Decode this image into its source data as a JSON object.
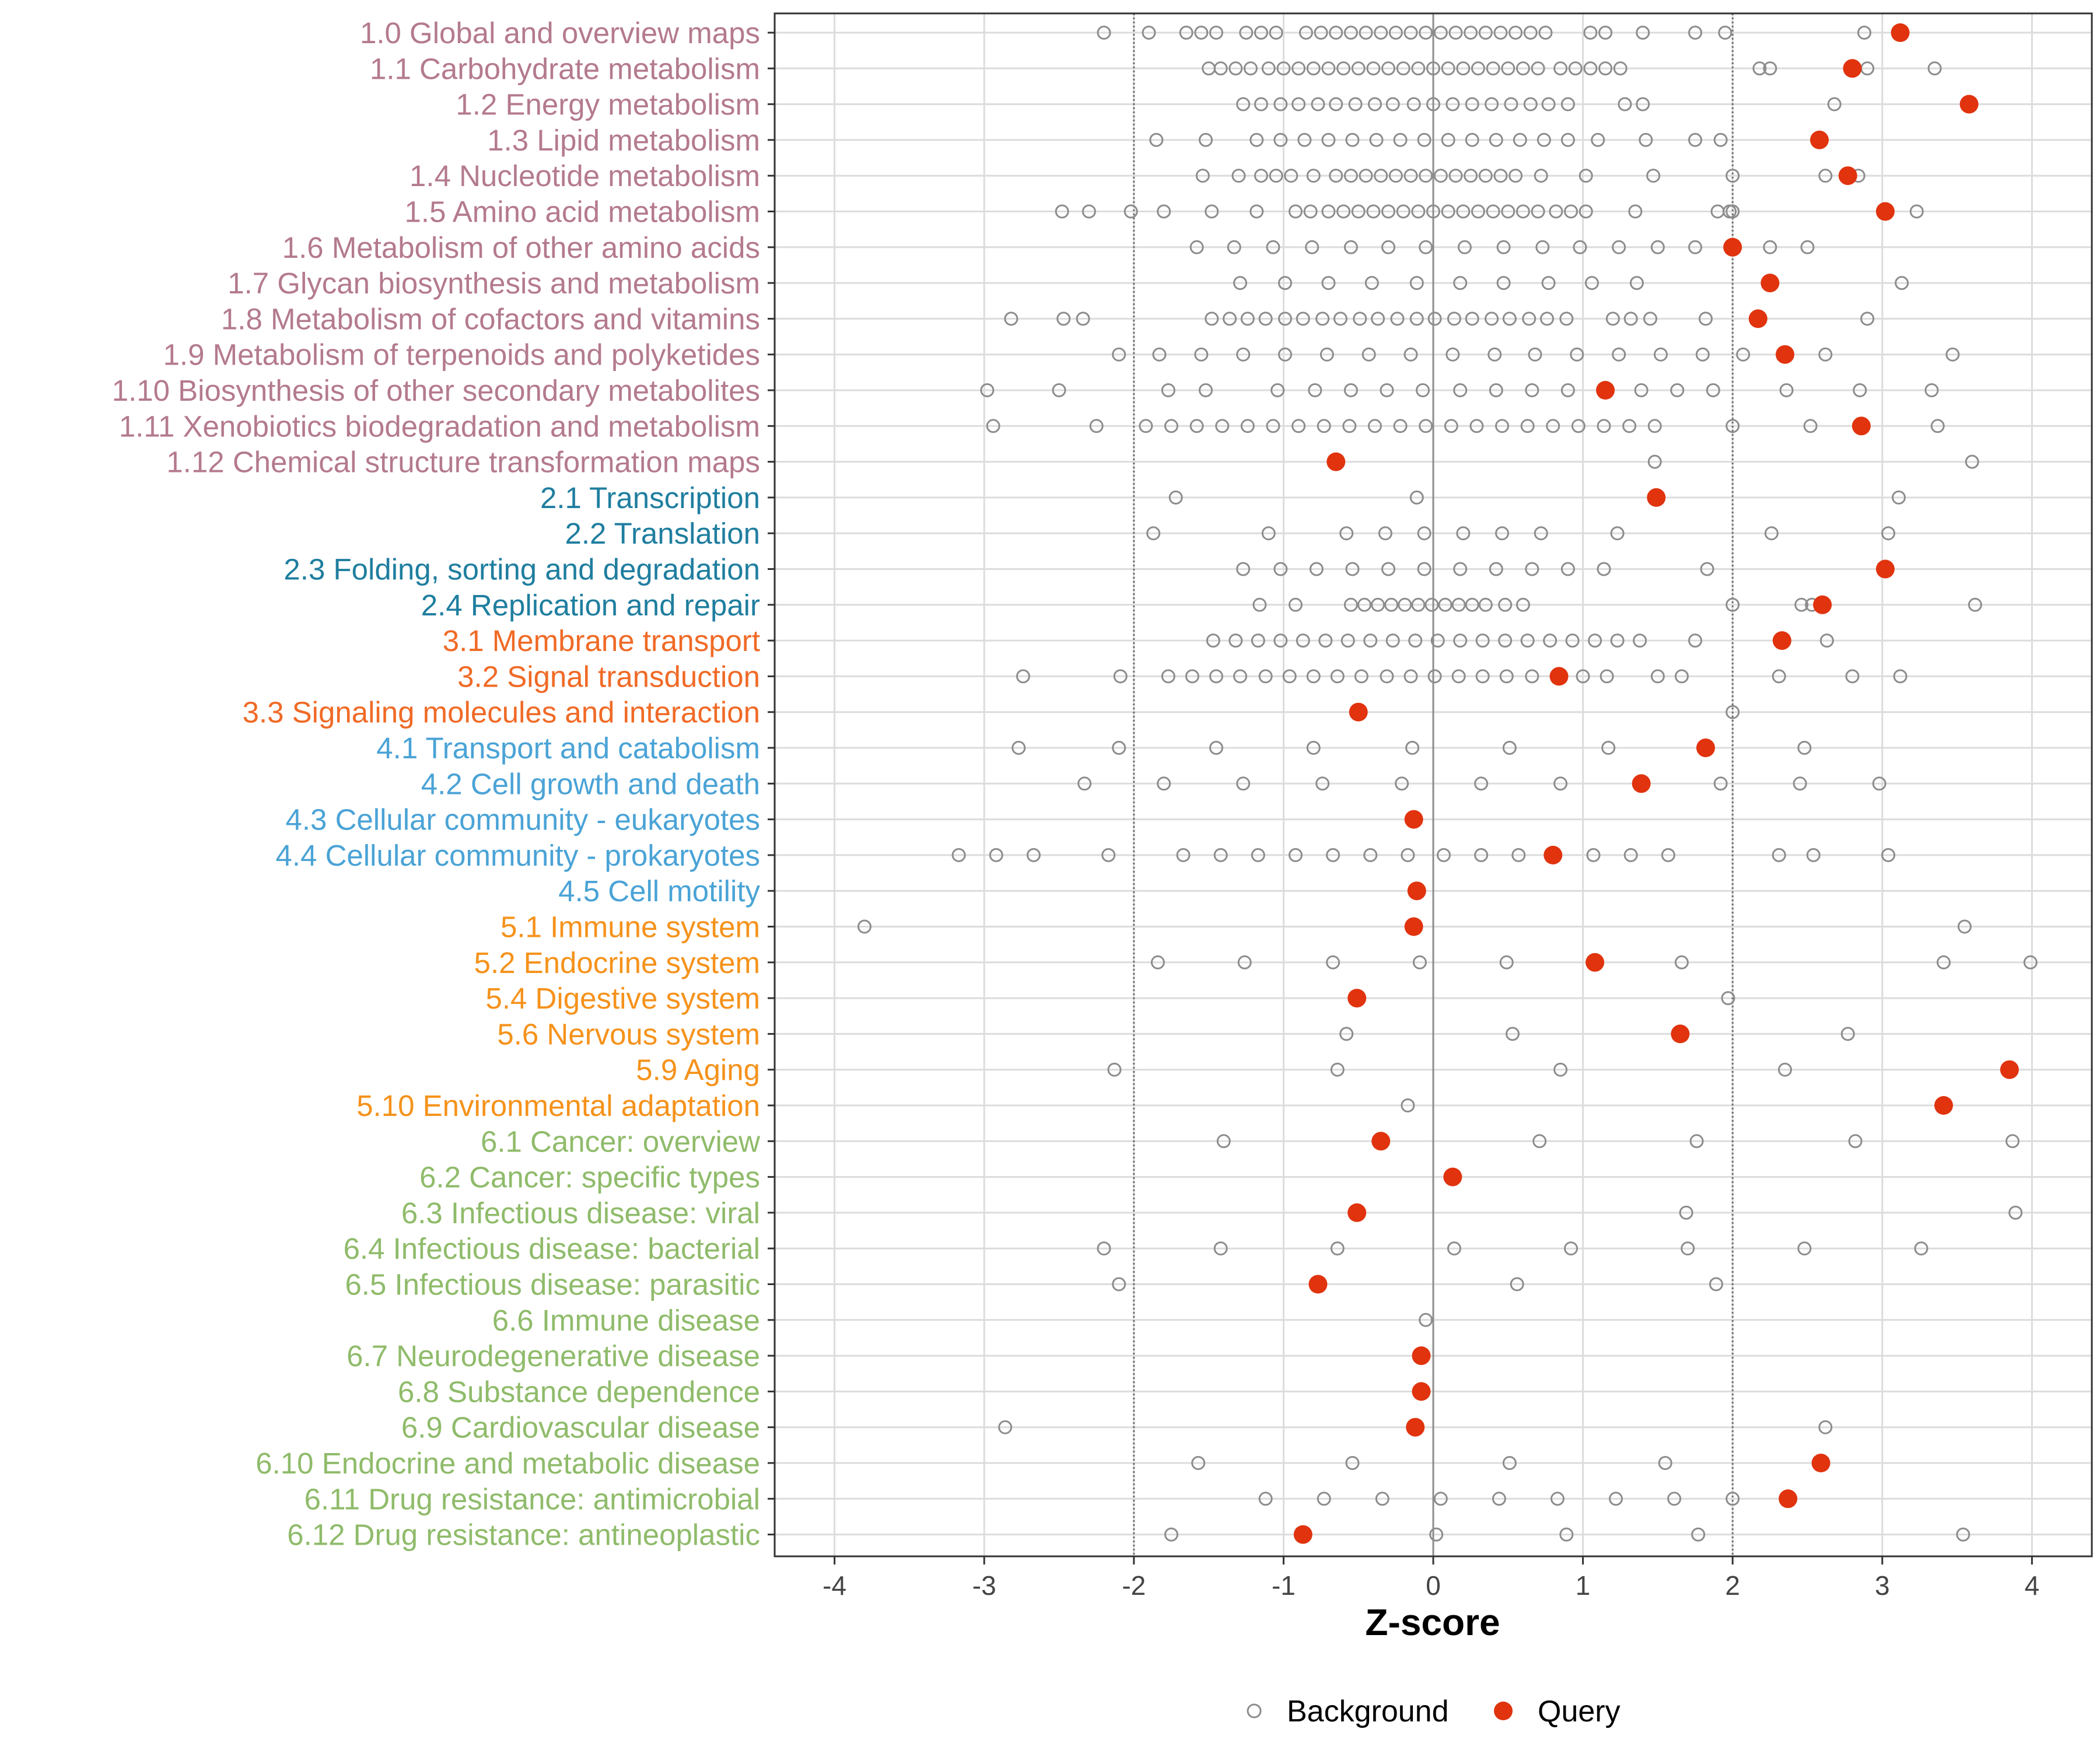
{
  "chart_data": {
    "type": "scatter",
    "xlabel": "Z-score",
    "ylabel": "",
    "xlim": [
      -4.4,
      4.4
    ],
    "xticks": [
      -4,
      -3,
      -2,
      -1,
      0,
      1,
      2,
      3,
      4
    ],
    "reference_lines": [
      -2,
      2
    ],
    "grid": true,
    "legend": {
      "position": "bottom",
      "entries": [
        {
          "name": "Background",
          "marker": "open-circle",
          "color": "#8c8c8c"
        },
        {
          "name": "Query",
          "marker": "filled-circle",
          "color": "#e0330e"
        }
      ]
    },
    "category_colors": {
      "1": "#b47a8d",
      "2": "#1f7e9f",
      "3": "#f06a26",
      "4": "#4aa3d6",
      "5": "#f5921b",
      "6": "#8fbb6a"
    },
    "categories": [
      {
        "label": "1.0 Global and overview maps",
        "group": "1",
        "query": 3.12,
        "background": [
          -2.2,
          -1.9,
          -1.65,
          -1.55,
          -1.45,
          -1.25,
          -1.15,
          -1.05,
          -0.85,
          -0.75,
          -0.65,
          -0.55,
          -0.45,
          -0.35,
          -0.25,
          -0.15,
          -0.05,
          0.05,
          0.15,
          0.25,
          0.35,
          0.45,
          0.55,
          0.65,
          0.75,
          1.05,
          1.15,
          1.4,
          1.75,
          1.95,
          2.88
        ]
      },
      {
        "label": "1.1 Carbohydrate metabolism",
        "group": "1",
        "query": 2.8,
        "background": [
          -1.5,
          -1.42,
          -1.32,
          -1.22,
          -1.1,
          -1.0,
          -0.9,
          -0.8,
          -0.7,
          -0.6,
          -0.5,
          -0.4,
          -0.3,
          -0.2,
          -0.1,
          0.0,
          0.1,
          0.2,
          0.3,
          0.4,
          0.5,
          0.6,
          0.7,
          0.85,
          0.95,
          1.05,
          1.15,
          1.25,
          2.18,
          2.25,
          2.9,
          3.35
        ]
      },
      {
        "label": "1.2 Energy metabolism",
        "group": "1",
        "query": 3.58,
        "background": [
          -1.27,
          -1.15,
          -1.02,
          -0.9,
          -0.77,
          -0.65,
          -0.52,
          -0.39,
          -0.27,
          -0.13,
          0.0,
          0.13,
          0.26,
          0.39,
          0.52,
          0.65,
          0.77,
          0.9,
          1.28,
          1.4,
          2.68
        ]
      },
      {
        "label": "1.3 Lipid metabolism",
        "group": "1",
        "query": 2.58,
        "background": [
          -1.85,
          -1.52,
          -1.18,
          -1.02,
          -0.86,
          -0.7,
          -0.54,
          -0.38,
          -0.22,
          -0.06,
          0.1,
          0.26,
          0.42,
          0.58,
          0.74,
          0.9,
          1.1,
          1.42,
          1.75,
          1.92
        ]
      },
      {
        "label": "1.4 Nucleotide metabolism",
        "group": "1",
        "query": 2.77,
        "background": [
          -1.54,
          -1.3,
          -1.15,
          -1.05,
          -0.95,
          -0.8,
          -0.65,
          -0.55,
          -0.45,
          -0.35,
          -0.25,
          -0.15,
          -0.05,
          0.05,
          0.15,
          0.25,
          0.35,
          0.45,
          0.55,
          0.72,
          1.02,
          1.47,
          2.0,
          2.62,
          2.84
        ]
      },
      {
        "label": "1.5 Amino acid metabolism",
        "group": "1",
        "query": 3.02,
        "background": [
          -2.48,
          -2.3,
          -2.02,
          -1.8,
          -1.48,
          -1.18,
          -0.92,
          -0.82,
          -0.7,
          -0.6,
          -0.5,
          -0.4,
          -0.3,
          -0.2,
          -0.1,
          0.0,
          0.1,
          0.2,
          0.3,
          0.4,
          0.5,
          0.6,
          0.7,
          0.82,
          0.92,
          1.02,
          1.35,
          1.9,
          1.98,
          2.0,
          3.23
        ]
      },
      {
        "label": "1.6 Metabolism of other amino acids",
        "group": "1",
        "query": 2.0,
        "background": [
          -1.58,
          -1.33,
          -1.07,
          -0.81,
          -0.55,
          -0.3,
          -0.05,
          0.21,
          0.47,
          0.73,
          0.98,
          1.24,
          1.5,
          1.75,
          2.25,
          2.5
        ]
      },
      {
        "label": "1.7 Glycan biosynthesis and metabolism",
        "group": "1",
        "query": 2.25,
        "background": [
          -1.29,
          -0.99,
          -0.7,
          -0.41,
          -0.11,
          0.18,
          0.47,
          0.77,
          1.06,
          1.36,
          3.13
        ]
      },
      {
        "label": "1.8 Metabolism of cofactors and vitamins",
        "group": "1",
        "query": 2.17,
        "background": [
          -2.82,
          -2.47,
          -2.34,
          -1.48,
          -1.36,
          -1.24,
          -1.12,
          -0.99,
          -0.87,
          -0.74,
          -0.62,
          -0.49,
          -0.37,
          -0.24,
          -0.11,
          0.01,
          0.14,
          0.26,
          0.39,
          0.51,
          0.64,
          0.76,
          0.89,
          1.2,
          1.32,
          1.45,
          1.82,
          2.9
        ]
      },
      {
        "label": "1.9 Metabolism of terpenoids and polyketides",
        "group": "1",
        "query": 2.35,
        "background": [
          -2.1,
          -1.83,
          -1.55,
          -1.27,
          -0.99,
          -0.71,
          -0.43,
          -0.15,
          0.13,
          0.41,
          0.68,
          0.96,
          1.24,
          1.52,
          1.8,
          2.07,
          2.62,
          3.47
        ]
      },
      {
        "label": "1.10 Biosynthesis of other secondary metabolites",
        "group": "1",
        "query": 1.15,
        "background": [
          -2.98,
          -2.5,
          -1.77,
          -1.52,
          -1.04,
          -0.79,
          -0.55,
          -0.31,
          -0.07,
          0.18,
          0.42,
          0.66,
          0.9,
          1.39,
          1.63,
          1.87,
          2.36,
          2.85,
          3.33
        ]
      },
      {
        "label": "1.11 Xenobiotics biodegradation and metabolism",
        "group": "1",
        "query": 2.86,
        "background": [
          -2.94,
          -2.25,
          -1.92,
          -1.75,
          -1.58,
          -1.41,
          -1.24,
          -1.07,
          -0.9,
          -0.73,
          -0.56,
          -0.39,
          -0.22,
          -0.05,
          0.12,
          0.29,
          0.46,
          0.63,
          0.8,
          0.97,
          1.14,
          1.31,
          1.48,
          2.0,
          2.52,
          3.37
        ]
      },
      {
        "label": "1.12 Chemical structure transformation maps",
        "group": "1",
        "query": -0.65,
        "background": [
          1.48,
          3.6
        ]
      },
      {
        "label": "2.1 Transcription",
        "group": "2",
        "query": 1.49,
        "background": [
          -1.72,
          -0.11,
          3.11
        ]
      },
      {
        "label": "2.2 Translation",
        "group": "2",
        "query": null,
        "background": [
          -1.87,
          -1.1,
          -0.58,
          -0.32,
          -0.06,
          0.2,
          0.46,
          0.72,
          1.23,
          2.26,
          3.04
        ]
      },
      {
        "label": "2.3 Folding, sorting and degradation",
        "group": "2",
        "query": 3.02,
        "background": [
          -1.27,
          -1.02,
          -0.78,
          -0.54,
          -0.3,
          -0.06,
          0.18,
          0.42,
          0.66,
          0.9,
          1.14,
          1.83
        ]
      },
      {
        "label": "2.4 Replication and repair",
        "group": "2",
        "query": 2.6,
        "background": [
          -1.16,
          -0.92,
          -0.55,
          -0.46,
          -0.37,
          -0.28,
          -0.19,
          -0.1,
          -0.01,
          0.08,
          0.17,
          0.26,
          0.35,
          0.48,
          0.6,
          2.0,
          2.46,
          2.53,
          3.62
        ]
      },
      {
        "label": "3.1 Membrane transport",
        "group": "3",
        "query": 2.33,
        "background": [
          -1.47,
          -1.32,
          -1.17,
          -1.02,
          -0.87,
          -0.72,
          -0.57,
          -0.42,
          -0.27,
          -0.12,
          0.03,
          0.18,
          0.33,
          0.48,
          0.63,
          0.78,
          0.93,
          1.08,
          1.23,
          1.38,
          1.75,
          2.63
        ]
      },
      {
        "label": "3.2 Signal transduction",
        "group": "3",
        "query": 0.84,
        "background": [
          -2.74,
          -2.09,
          -1.77,
          -1.61,
          -1.45,
          -1.29,
          -1.12,
          -0.96,
          -0.8,
          -0.64,
          -0.48,
          -0.31,
          -0.15,
          0.01,
          0.17,
          0.33,
          0.49,
          0.66,
          1.0,
          1.16,
          1.5,
          1.66,
          2.31,
          2.8,
          3.12
        ]
      },
      {
        "label": "3.3 Signaling molecules and interaction",
        "group": "3",
        "query": -0.5,
        "background": [
          2.0
        ]
      },
      {
        "label": "4.1 Transport and catabolism",
        "group": "4",
        "query": 1.82,
        "background": [
          -2.77,
          -2.1,
          -1.45,
          -0.8,
          -0.14,
          0.51,
          1.17,
          2.48
        ]
      },
      {
        "label": "4.2 Cell growth and death",
        "group": "4",
        "query": 1.39,
        "background": [
          -2.33,
          -1.8,
          -1.27,
          -0.74,
          -0.21,
          0.32,
          0.85,
          1.92,
          2.45,
          2.98
        ]
      },
      {
        "label": "4.3 Cellular community - eukaryotes",
        "group": "4",
        "query": -0.13,
        "background": []
      },
      {
        "label": "4.4 Cellular community - prokaryotes",
        "group": "4",
        "query": 0.8,
        "background": [
          -3.17,
          -2.92,
          -2.67,
          -2.17,
          -1.67,
          -1.42,
          -1.17,
          -0.92,
          -0.67,
          -0.42,
          -0.17,
          0.07,
          0.32,
          0.57,
          1.07,
          1.32,
          1.57,
          2.31,
          2.54,
          3.04
        ]
      },
      {
        "label": "4.5 Cell motility",
        "group": "4",
        "query": -0.11,
        "background": []
      },
      {
        "label": "5.1 Immune system",
        "group": "5",
        "query": -0.13,
        "background": [
          -3.8,
          3.55
        ]
      },
      {
        "label": "5.2 Endocrine system",
        "group": "5",
        "query": 1.08,
        "background": [
          -1.84,
          -1.26,
          -0.67,
          -0.09,
          0.49,
          1.66,
          3.41,
          3.99
        ]
      },
      {
        "label": "5.4 Digestive system",
        "group": "5",
        "query": -0.51,
        "background": [
          1.97
        ]
      },
      {
        "label": "5.6 Nervous system",
        "group": "5",
        "query": 1.65,
        "background": [
          -0.58,
          0.53,
          2.77
        ]
      },
      {
        "label": "5.9 Aging",
        "group": "5",
        "query": 3.85,
        "background": [
          -2.13,
          -0.64,
          0.85,
          2.35
        ]
      },
      {
        "label": "5.10 Environmental adaptation",
        "group": "5",
        "query": 3.41,
        "background": [
          -0.17
        ]
      },
      {
        "label": "6.1 Cancer: overview",
        "group": "6",
        "query": -0.35,
        "background": [
          -1.4,
          0.71,
          1.76,
          2.82,
          3.87
        ]
      },
      {
        "label": "6.2 Cancer: specific types",
        "group": "6",
        "query": 0.13,
        "background": []
      },
      {
        "label": "6.3 Infectious disease: viral",
        "group": "6",
        "query": -0.51,
        "background": [
          1.69,
          3.89
        ]
      },
      {
        "label": "6.4 Infectious disease: bacterial",
        "group": "6",
        "query": null,
        "background": [
          -2.2,
          -1.42,
          -0.64,
          0.14,
          0.92,
          1.7,
          2.48,
          3.26
        ]
      },
      {
        "label": "6.5 Infectious disease: parasitic",
        "group": "6",
        "query": -0.77,
        "background": [
          -2.1,
          0.56,
          1.89
        ]
      },
      {
        "label": "6.6 Immune disease",
        "group": "6",
        "query": null,
        "background": [
          -0.05
        ]
      },
      {
        "label": "6.7 Neurodegenerative disease",
        "group": "6",
        "query": -0.08,
        "background": []
      },
      {
        "label": "6.8 Substance dependence",
        "group": "6",
        "query": -0.08,
        "background": []
      },
      {
        "label": "6.9 Cardiovascular disease",
        "group": "6",
        "query": -0.12,
        "background": [
          -2.86,
          2.62
        ]
      },
      {
        "label": "6.10 Endocrine and metabolic disease",
        "group": "6",
        "query": 2.59,
        "background": [
          -1.57,
          -0.54,
          0.51,
          1.55
        ]
      },
      {
        "label": "6.11 Drug resistance: antimicrobial",
        "group": "6",
        "query": 2.37,
        "background": [
          -1.12,
          -0.73,
          -0.34,
          0.05,
          0.44,
          0.83,
          1.22,
          1.61,
          2.0
        ]
      },
      {
        "label": "6.12 Drug resistance: antineoplastic",
        "group": "6",
        "query": -0.87,
        "background": [
          -1.75,
          0.02,
          0.89,
          1.77,
          3.54
        ]
      }
    ]
  }
}
